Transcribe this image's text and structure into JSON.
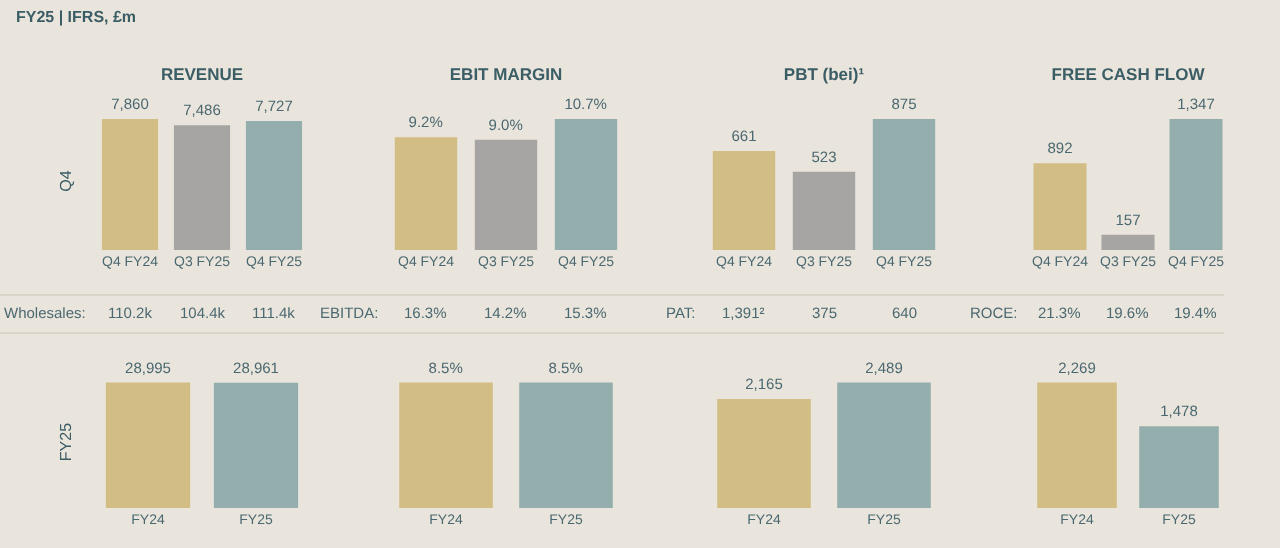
{
  "chart_data": [
    {
      "type": "other",
      "title": "FY25 | IFRS, £m"
    },
    {
      "type": "bar",
      "title": "REVENUE",
      "ylabel": "Q4",
      "categories": [
        "Q4 FY24",
        "Q3 FY25",
        "Q4 FY25"
      ],
      "values": [
        7860,
        7486,
        7727
      ],
      "value_labels": [
        "7,860",
        "7,486",
        "7,727"
      ],
      "colors": [
        "#d2bd84",
        "#a6a5a4",
        "#94aeae"
      ],
      "annotations": [
        "Wholesales:",
        "110.2k",
        "104.4k",
        "111.4k"
      ],
      "tick_labels": "x"
    },
    {
      "type": "bar",
      "title": "EBIT MARGIN",
      "categories": [
        "Q4 FY24",
        "Q3 FY25",
        "Q4 FY25"
      ],
      "values": [
        9.2,
        9.0,
        10.7
      ],
      "value_labels": [
        "9.2%",
        "9.0%",
        "10.7%"
      ],
      "colors": [
        "#d2bd84",
        "#a6a5a4",
        "#94aeae"
      ],
      "annotations": [
        "EBITDA:",
        "16.3%",
        "14.2%",
        "15.3%"
      ],
      "tick_labels": "x"
    },
    {
      "type": "bar",
      "title": "PBT (bei)¹",
      "categories": [
        "Q4 FY24",
        "Q3 FY25",
        "Q4 FY25"
      ],
      "values": [
        661,
        523,
        875
      ],
      "value_labels": [
        "661",
        "523",
        "875"
      ],
      "colors": [
        "#d2bd84",
        "#a6a5a4",
        "#94aeae"
      ],
      "annotations": [
        "PAT:",
        "1,391²",
        "375",
        "640"
      ],
      "tick_labels": "x"
    },
    {
      "type": "bar",
      "title": "FREE CASH FLOW",
      "categories": [
        "Q4 FY24",
        "Q3 FY25",
        "Q4 FY25"
      ],
      "values": [
        892,
        157,
        1347
      ],
      "value_labels": [
        "892",
        "157",
        "1,347"
      ],
      "colors": [
        "#d2bd84",
        "#a6a5a4",
        "#94aeae"
      ],
      "annotations": [
        "ROCE:",
        "21.3%",
        "19.6%",
        "19.4%"
      ],
      "tick_labels": "x"
    },
    {
      "type": "bar",
      "ylabel": "FY25",
      "categories": [
        "FY24",
        "FY25"
      ],
      "values": [
        28995,
        28961
      ],
      "value_labels": [
        "28,995",
        "28,961"
      ],
      "colors": [
        "#d2bd84",
        "#94aeae"
      ],
      "tick_labels": "x"
    },
    {
      "type": "bar",
      "categories": [
        "FY24",
        "FY25"
      ],
      "values": [
        8.5,
        8.5
      ],
      "value_labels": [
        "8.5%",
        "8.5%"
      ],
      "colors": [
        "#d2bd84",
        "#94aeae"
      ],
      "tick_labels": "x"
    },
    {
      "type": "bar",
      "categories": [
        "FY24",
        "FY25"
      ],
      "values": [
        2165,
        2489
      ],
      "value_labels": [
        "2,165",
        "2,489"
      ],
      "colors": [
        "#d2bd84",
        "#94aeae"
      ],
      "tick_labels": "x"
    },
    {
      "type": "bar",
      "categories": [
        "FY24",
        "FY25"
      ],
      "values": [
        2269,
        1478
      ],
      "value_labels": [
        "2,269",
        "1,478"
      ],
      "colors": [
        "#d2bd84",
        "#94aeae"
      ],
      "tick_labels": "x"
    }
  ]
}
